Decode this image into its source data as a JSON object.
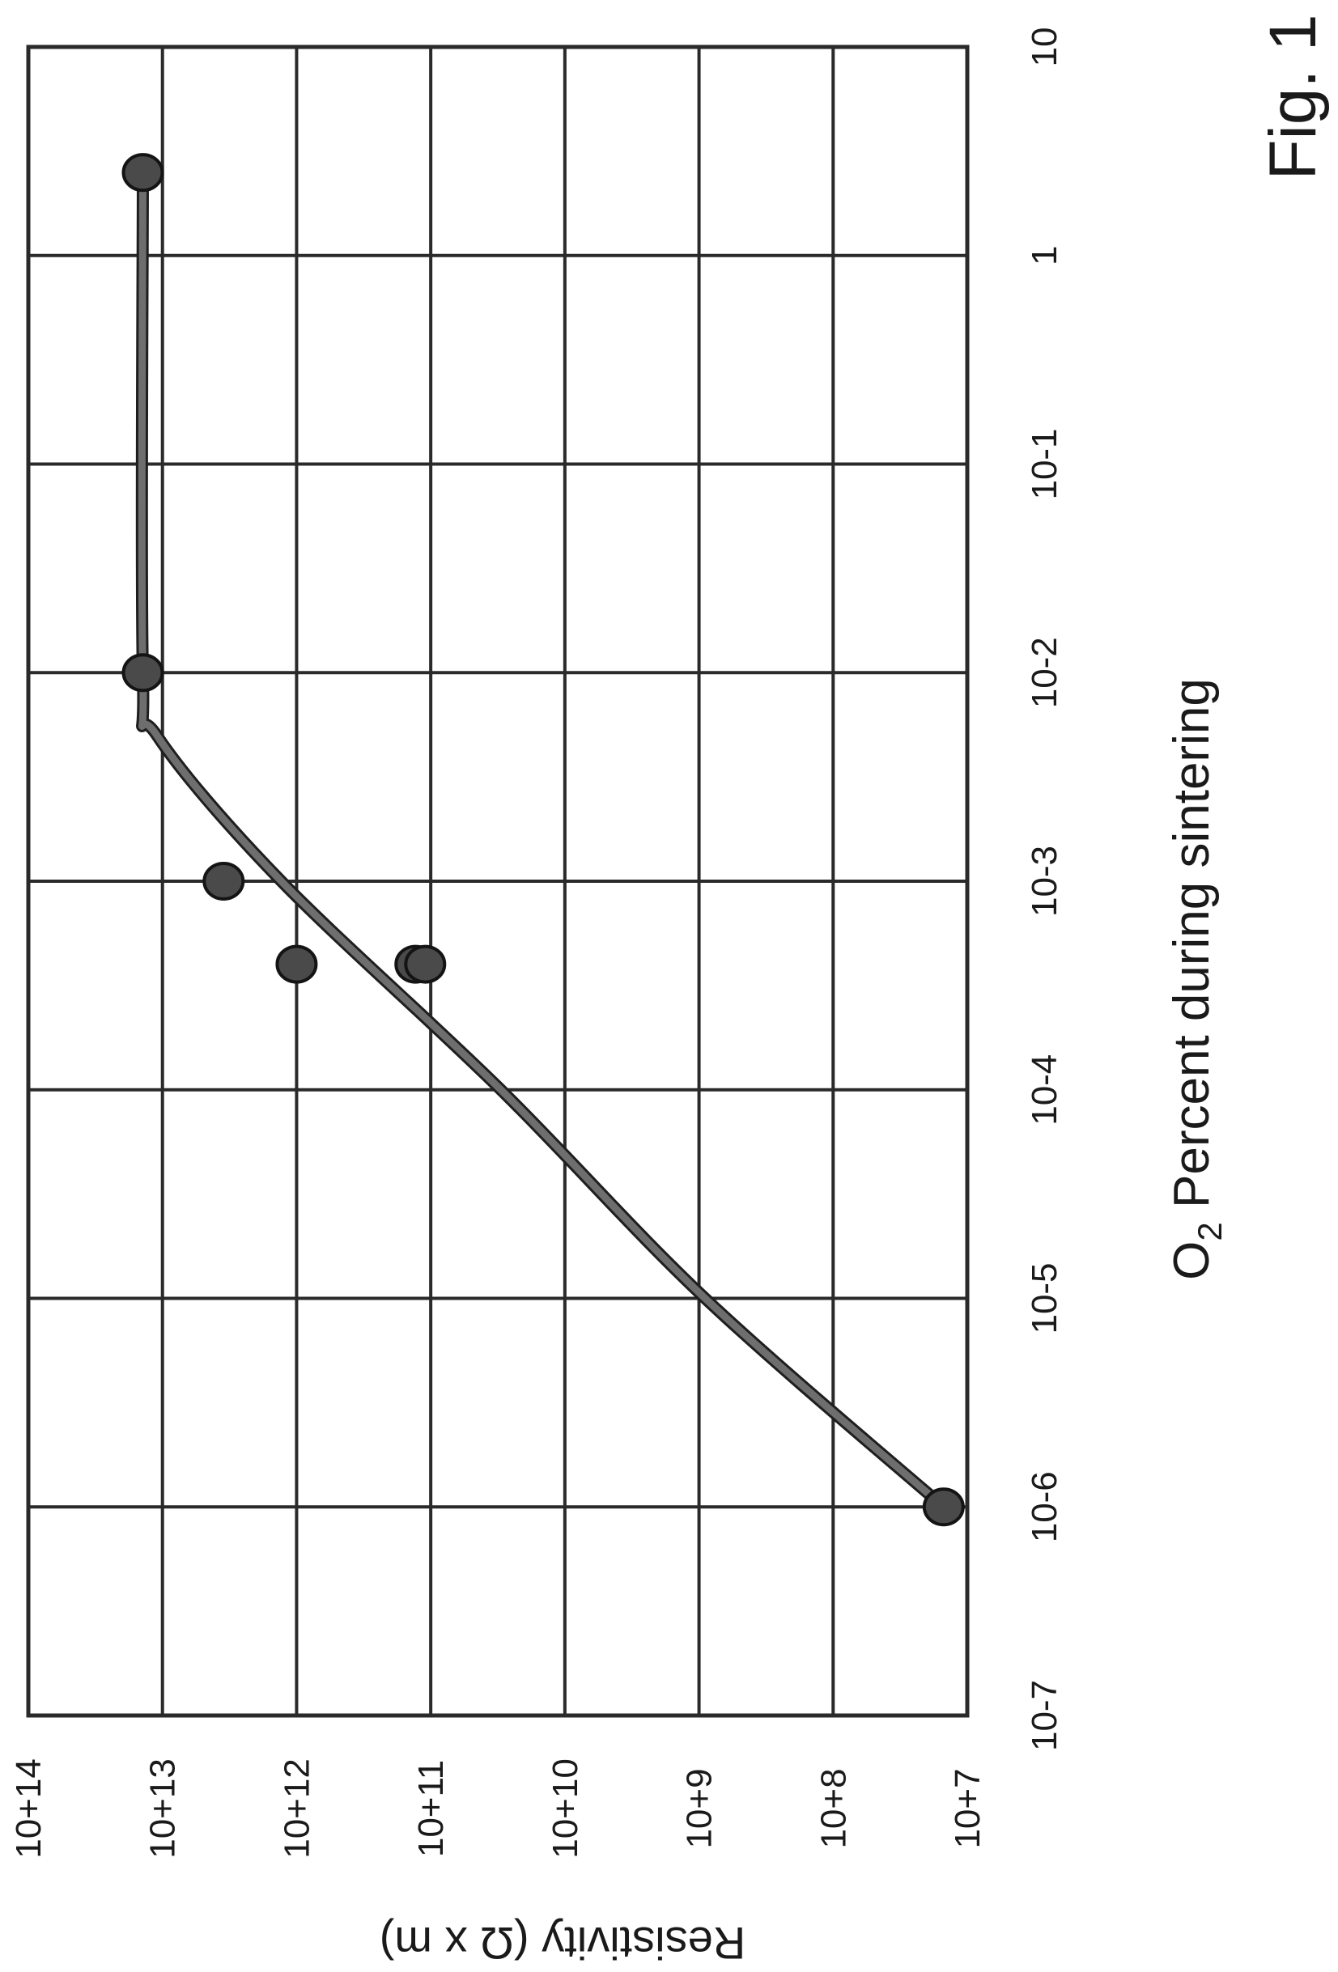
{
  "figure_label": "Fig. 1",
  "chart_data": {
    "type": "scatter",
    "orientation": "rotated 90 degrees counter-clockwise (x axis reads bottom-to-top, y axis reads right-to-left)",
    "xlabel_main": "O",
    "xlabel_sub": "2",
    "xlabel_rest": " Percent during sintering",
    "ylabel": "Resistivity (Ω x m)",
    "x_scale": "log",
    "y_scale": "log",
    "xlim": [
      1e-07,
      10
    ],
    "ylim": [
      10000000.0,
      100000000000000.0
    ],
    "grid": true,
    "x_ticks": [
      {
        "value": 1e-07,
        "label": "10-7"
      },
      {
        "value": 1e-06,
        "label": "10-6"
      },
      {
        "value": 1e-05,
        "label": "10-5"
      },
      {
        "value": 0.0001,
        "label": "10-4"
      },
      {
        "value": 0.001,
        "label": "10-3"
      },
      {
        "value": 0.01,
        "label": "10-2"
      },
      {
        "value": 0.1,
        "label": "10-1"
      },
      {
        "value": 1,
        "label": "1"
      },
      {
        "value": 10,
        "label": "10"
      }
    ],
    "y_ticks": [
      {
        "value": 10000000.0,
        "label": "10+7"
      },
      {
        "value": 100000000.0,
        "label": "10+8"
      },
      {
        "value": 1000000000.0,
        "label": "10+9"
      },
      {
        "value": 10000000000.0,
        "label": "10+10"
      },
      {
        "value": 100000000000.0,
        "label": "10+11"
      },
      {
        "value": 1000000000000.0,
        "label": "10+12"
      },
      {
        "value": 10000000000000.0,
        "label": "10+13"
      },
      {
        "value": 100000000000000.0,
        "label": "10+14"
      }
    ],
    "points": [
      {
        "x": 1e-06,
        "y": 15000000.0
      },
      {
        "x": 0.0004,
        "y": 130000000000.0
      },
      {
        "x": 0.0004,
        "y": 110000000000.0
      },
      {
        "x": 0.0004,
        "y": 1000000000000.0
      },
      {
        "x": 0.001,
        "y": 3500000000000.0
      },
      {
        "x": 0.01,
        "y": 14000000000000.0
      },
      {
        "x": 2.5,
        "y": 14000000000000.0
      }
    ],
    "fit_curve": [
      {
        "x": 1e-06,
        "y": 15000000.0
      },
      {
        "x": 1e-05,
        "y": 900000000.0
      },
      {
        "x": 0.0001,
        "y": 30000000000.0
      },
      {
        "x": 0.001,
        "y": 1300000000000.0
      },
      {
        "x": 0.005,
        "y": 11000000000000.0
      },
      {
        "x": 0.01,
        "y": 14000000000000.0
      },
      {
        "x": 2.5,
        "y": 14000000000000.0
      }
    ]
  }
}
